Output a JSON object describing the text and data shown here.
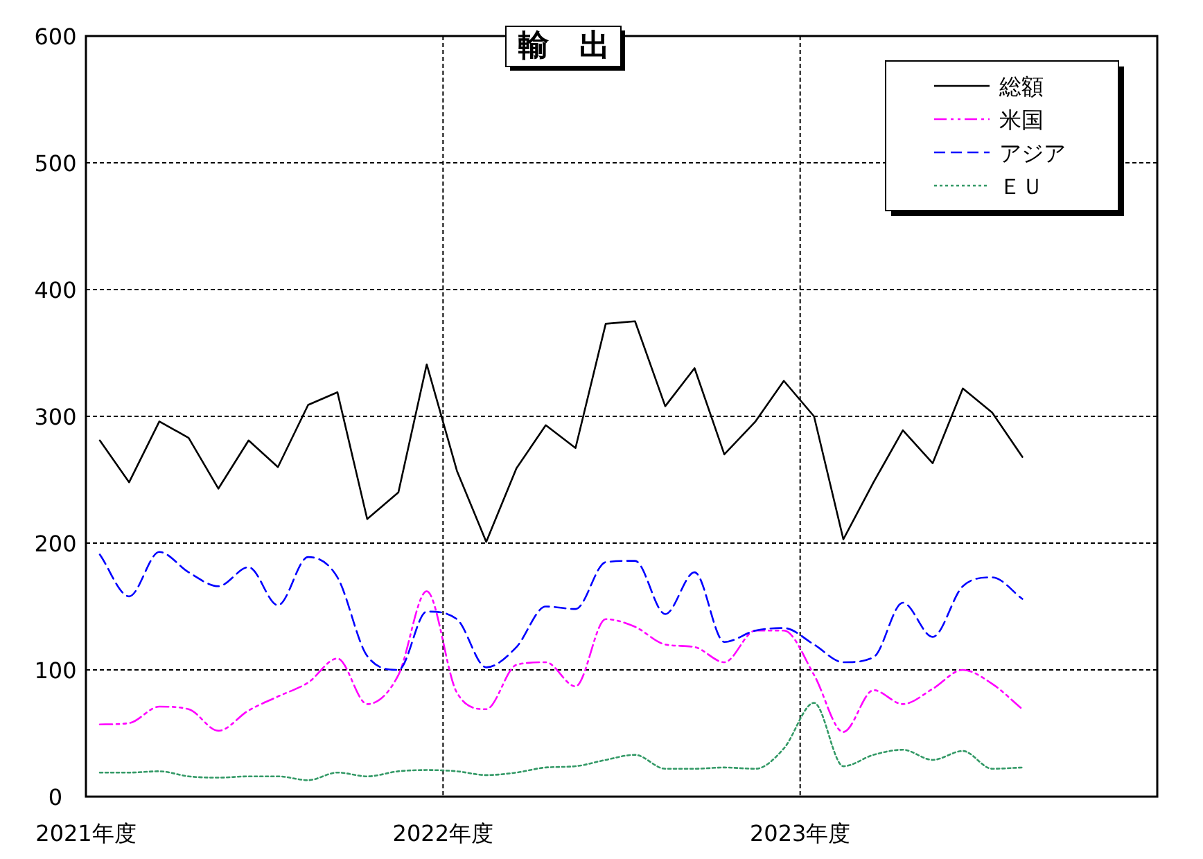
{
  "chart_data": {
    "type": "line",
    "title": "輸　出",
    "x": [
      "2021-04-15",
      "2021-05-15",
      "2021-06-15",
      "2021-07-15",
      "2021-08-15",
      "2021-09-15",
      "2021-10-15",
      "2021-11-15",
      "2021-12-15",
      "2022-01-15",
      "2022-02-15",
      "2022-03-15",
      "2022-04-15",
      "2022-05-15",
      "2022-06-15",
      "2022-07-15",
      "2022-08-15",
      "2022-09-15",
      "2022-10-15",
      "2022-11-15",
      "2022-12-15",
      "2023-01-15",
      "2023-02-15",
      "2023-03-15",
      "2023-04-15",
      "2023-05-15",
      "2023-06-15",
      "2023-07-15",
      "2023-08-15",
      "2023-09-15",
      "2023-10-15",
      "2023-11-15"
    ],
    "xlim": [
      "2021-04-01",
      "2024-04-01"
    ],
    "xticks": [
      {
        "value": "2021-04-01",
        "label": "2021年度"
      },
      {
        "value": "2022-04-01",
        "label": "2022年度"
      },
      {
        "value": "2023-04-01",
        "label": "2023年度"
      }
    ],
    "ylim": [
      0,
      600
    ],
    "yticks": [
      0,
      100,
      200,
      300,
      400,
      500,
      600
    ],
    "grid": true,
    "legend": "top right",
    "series": [
      {
        "name": "総額",
        "color": "#000000",
        "line_style": "solid",
        "values": [
          281,
          248,
          296,
          283,
          243,
          281,
          260,
          309,
          319,
          219,
          240,
          341,
          257,
          201,
          259,
          293,
          275,
          373,
          375,
          308,
          338,
          270,
          296,
          328,
          300,
          203,
          248,
          289,
          263,
          322,
          303,
          268
        ]
      },
      {
        "name": "米国",
        "color": "#ff00ff",
        "line_style": "dashdot",
        "values": [
          57,
          58,
          71,
          69,
          52,
          68,
          79,
          90,
          109,
          73,
          96,
          162,
          82,
          69,
          104,
          106,
          87,
          140,
          134,
          120,
          118,
          106,
          131,
          131,
          96,
          51,
          84,
          73,
          85,
          100,
          89,
          69
        ]
      },
      {
        "name": "アジア",
        "color": "#0000ff",
        "line_style": "dashed",
        "values": [
          191,
          158,
          193,
          177,
          166,
          181,
          151,
          189,
          173,
          111,
          100,
          146,
          140,
          102,
          118,
          150,
          148,
          185,
          186,
          144,
          177,
          122,
          131,
          133,
          120,
          106,
          110,
          153,
          126,
          166,
          173,
          156
        ]
      },
      {
        "name": "ＥＵ",
        "color": "#339966",
        "line_style": "dotted",
        "values": [
          19,
          19,
          20,
          16,
          15,
          16,
          16,
          13,
          19,
          16,
          20,
          21,
          20,
          17,
          19,
          23,
          24,
          29,
          33,
          22,
          22,
          23,
          22,
          38,
          74,
          24,
          33,
          37,
          29,
          36,
          22,
          23
        ]
      }
    ]
  }
}
